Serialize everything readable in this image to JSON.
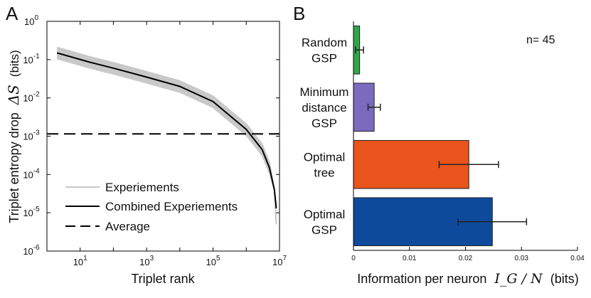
{
  "chart_data": [
    {
      "panel": "A",
      "type": "line",
      "xlabel": "Triplet rank",
      "ylabel": "Triplet entropy drop",
      "ylabel_math": "ΔS",
      "ylabel_unit": "(bits)",
      "xscale": "log",
      "yscale": "log",
      "xlim": [
        1,
        10000000
      ],
      "ylim": [
        1e-06,
        1
      ],
      "xticks": [
        {
          "v": 10,
          "base": "10",
          "exp": "1"
        },
        {
          "v": 1000,
          "base": "10",
          "exp": "3"
        },
        {
          "v": 100000,
          "base": "10",
          "exp": "5"
        },
        {
          "v": 10000000,
          "base": "10",
          "exp": "7"
        }
      ],
      "yticks": [
        {
          "v": 1,
          "base": "10",
          "exp": "0"
        },
        {
          "v": 0.1,
          "base": "10",
          "exp": "-1"
        },
        {
          "v": 0.01,
          "base": "10",
          "exp": "-2"
        },
        {
          "v": 0.001,
          "base": "10",
          "exp": "-3"
        },
        {
          "v": 0.0001,
          "base": "10",
          "exp": "-4"
        },
        {
          "v": 1e-05,
          "base": "10",
          "exp": "-5"
        },
        {
          "v": 1e-06,
          "base": "10",
          "exp": "-6"
        }
      ],
      "legend_position": "bottom-left",
      "series": [
        {
          "name": "Combined Experiements",
          "color": "#000000",
          "x": [
            2,
            5,
            20,
            100,
            1000,
            10000,
            100000,
            1000000,
            3000000,
            5000000,
            7000000,
            8000000
          ],
          "y": [
            0.15,
            0.12,
            0.085,
            0.06,
            0.035,
            0.02,
            0.008,
            0.0015,
            0.00045,
            0.00015,
            4e-05,
            1.3e-05
          ]
        },
        {
          "name": "Average",
          "color": "#000000",
          "dash": true,
          "x": [
            1,
            10000000
          ],
          "y": [
            0.00115,
            0.00115
          ]
        }
      ],
      "experiments_legend": "Experiements",
      "experiments_color": "#c8c8c8",
      "experiments_shape": {
        "x": [
          2,
          5,
          20,
          100,
          1000,
          10000,
          100000,
          1000000,
          3000000,
          5000000,
          7000000,
          8000000
        ],
        "y": [
          0.15,
          0.12,
          0.085,
          0.06,
          0.035,
          0.02,
          0.008,
          0.0015,
          0.00045,
          0.00015,
          4e-05,
          5e-06
        ]
      },
      "experiments_scales": [
        0.7,
        0.75,
        0.8,
        0.85,
        0.9,
        0.95,
        1.05,
        1.1,
        1.15,
        1.2,
        1.25,
        1.3,
        1.35,
        0.78,
        0.88,
        1.0,
        1.08,
        1.4
      ]
    },
    {
      "panel": "B",
      "type": "bar",
      "orientation": "horizontal",
      "annotation": "n= 45",
      "xlabel": "Information per neuron",
      "xlabel_math": "I_G / N",
      "xlabel_unit": "(bits)",
      "xlim": [
        0,
        0.04
      ],
      "xticks": [
        "0",
        "0.01",
        "0.02",
        "0.03",
        "0.04"
      ],
      "categories": [
        [
          "Random",
          "GSP"
        ],
        [
          "Minimum",
          "distance",
          "GSP"
        ],
        [
          "Optimal",
          "tree"
        ],
        [
          "Optimal",
          "GSP"
        ]
      ],
      "values": [
        0.0011,
        0.0037,
        0.0206,
        0.0248
      ],
      "errors": [
        0.0007,
        0.0011,
        0.0053,
        0.0061
      ],
      "colors": [
        "#2ea84a",
        "#7b6bbf",
        "#e8541b",
        "#0e4a9c"
      ]
    }
  ]
}
